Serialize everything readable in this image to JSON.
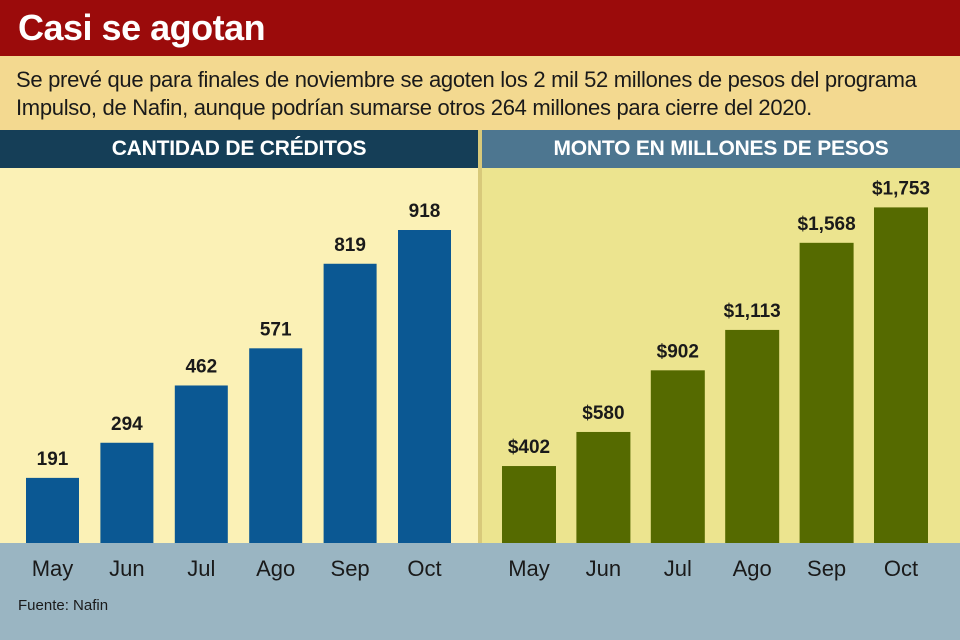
{
  "header": {
    "title": "Casi se agotan",
    "subtitle": "Se prevé que para finales de noviembre se agoten los 2 mil 52 millones de pesos del programa Impulso, de Nafin, aunque podrían sumarse otros 264 millones para cierre del 2020."
  },
  "colors": {
    "title_band": "#9b0b0b",
    "left_bars": "#0b5893",
    "right_bars": "#556a00",
    "left_head": "#153e57",
    "right_head": "#4d7690",
    "axis_band": "#9ab5c2"
  },
  "chart_data": [
    {
      "type": "bar",
      "title": "CANTIDAD DE CRÉDITOS",
      "categories": [
        "May",
        "Jun",
        "Jul",
        "Ago",
        "Sep",
        "Oct"
      ],
      "values": [
        191,
        294,
        462,
        571,
        819,
        918
      ],
      "labels": [
        "191",
        "294",
        "462",
        "571",
        "819",
        "918"
      ],
      "ylim": [
        0,
        1050
      ],
      "grid": false
    },
    {
      "type": "bar",
      "title": "MONTO EN MILLONES DE PESOS",
      "categories": [
        "May",
        "Jun",
        "Jul",
        "Ago",
        "Sep",
        "Oct"
      ],
      "values": [
        402,
        580,
        902,
        1113,
        1568,
        1753
      ],
      "labels": [
        "$402",
        "$580",
        "$902",
        "$1,113",
        "$1,568",
        "$1,753"
      ],
      "ylim": [
        0,
        1870
      ],
      "grid": false
    }
  ],
  "footer": {
    "source": "Fuente: Nafin"
  }
}
